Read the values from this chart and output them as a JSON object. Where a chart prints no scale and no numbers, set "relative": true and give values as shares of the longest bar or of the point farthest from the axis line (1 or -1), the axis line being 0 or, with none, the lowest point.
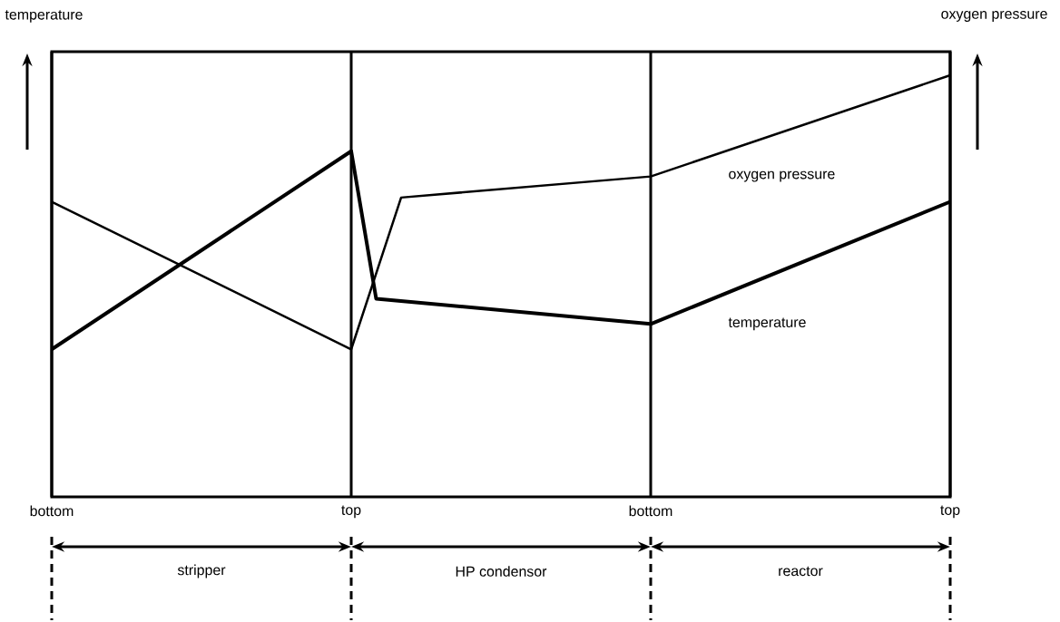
{
  "chart_data": {
    "type": "line",
    "relative": true,
    "ylabel": "temperature",
    "y2label": "oxygen pressure",
    "categories": [
      "bottom",
      null,
      null,
      null,
      null,
      null,
      null,
      null,
      null,
      null,
      null,
      null,
      "top",
      null,
      null,
      null,
      null,
      null,
      null,
      null,
      null,
      null,
      null,
      null,
      "bottom",
      null,
      null,
      null,
      null,
      null,
      null,
      null,
      null,
      null,
      null,
      null,
      "top"
    ],
    "series": [
      {
        "name": "temperature",
        "color": "#000000",
        "values": [
          0.35,
          null,
          null,
          null,
          null,
          null,
          null,
          null,
          null,
          null,
          null,
          null,
          0.82,
          0.47,
          null,
          null,
          null,
          null,
          null,
          null,
          null,
          null,
          null,
          null,
          0.41,
          null,
          null,
          null,
          null,
          null,
          null,
          null,
          null,
          null,
          null,
          null,
          0.7
        ]
      },
      {
        "name": "oxygen pressure",
        "color": "#000000",
        "values": [
          0.7,
          null,
          null,
          null,
          null,
          null,
          null,
          null,
          null,
          null,
          null,
          null,
          0.35,
          null,
          0.71,
          null,
          null,
          null,
          null,
          null,
          null,
          null,
          null,
          null,
          0.76,
          null,
          null,
          null,
          null,
          null,
          null,
          null,
          null,
          null,
          null,
          null,
          1
        ]
      }
    ],
    "grid": "x",
    "annotations": [
      "stripper",
      "HP condensor",
      "reactor"
    ],
    "legend": false,
    "marker": "none",
    "line_style": "solid",
    "tick_labels": "x"
  }
}
